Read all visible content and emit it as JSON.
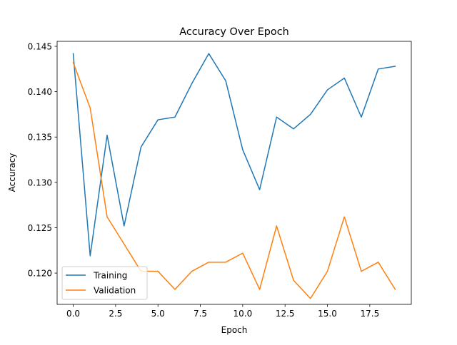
{
  "chart_data": {
    "type": "line",
    "title": "Accuracy Over Epoch",
    "xlabel": "Epoch",
    "ylabel": "Accuracy",
    "xlim": [
      -0.95,
      19.95
    ],
    "ylim": [
      0.11655,
      0.14555
    ],
    "xticks": [
      0,
      2.5,
      5,
      7.5,
      10,
      12.5,
      15,
      17.5
    ],
    "xtick_labels": [
      "0.0",
      "2.5",
      "5.0",
      "7.5",
      "10.0",
      "12.5",
      "15.0",
      "17.5"
    ],
    "yticks": [
      0.12,
      0.125,
      0.13,
      0.135,
      0.14,
      0.145
    ],
    "ytick_labels": [
      "0.120",
      "0.125",
      "0.130",
      "0.135",
      "0.140",
      "0.145"
    ],
    "grid": false,
    "legend_position": "lower-left",
    "x": [
      0,
      1,
      2,
      3,
      4,
      5,
      6,
      7,
      8,
      9,
      10,
      11,
      12,
      13,
      14,
      15,
      16,
      17,
      18,
      19
    ],
    "series": [
      {
        "name": "Training",
        "color": "#1f77b4",
        "values": [
          0.1442,
          0.1219,
          0.1352,
          0.1252,
          0.1339,
          0.1369,
          0.1372,
          0.1409,
          0.1442,
          0.1412,
          0.1336,
          0.1292,
          0.1372,
          0.1359,
          0.1375,
          0.1402,
          0.1415,
          0.1372,
          0.1425,
          0.1428
        ]
      },
      {
        "name": "Validation",
        "color": "#ff7f0e",
        "values": [
          0.1432,
          0.1382,
          0.1262,
          0.1232,
          0.1202,
          0.1202,
          0.1182,
          0.1202,
          0.1212,
          0.1212,
          0.1222,
          0.1182,
          0.1252,
          0.1192,
          0.1172,
          0.1202,
          0.1262,
          0.1202,
          0.1212,
          0.1182
        ]
      }
    ]
  }
}
